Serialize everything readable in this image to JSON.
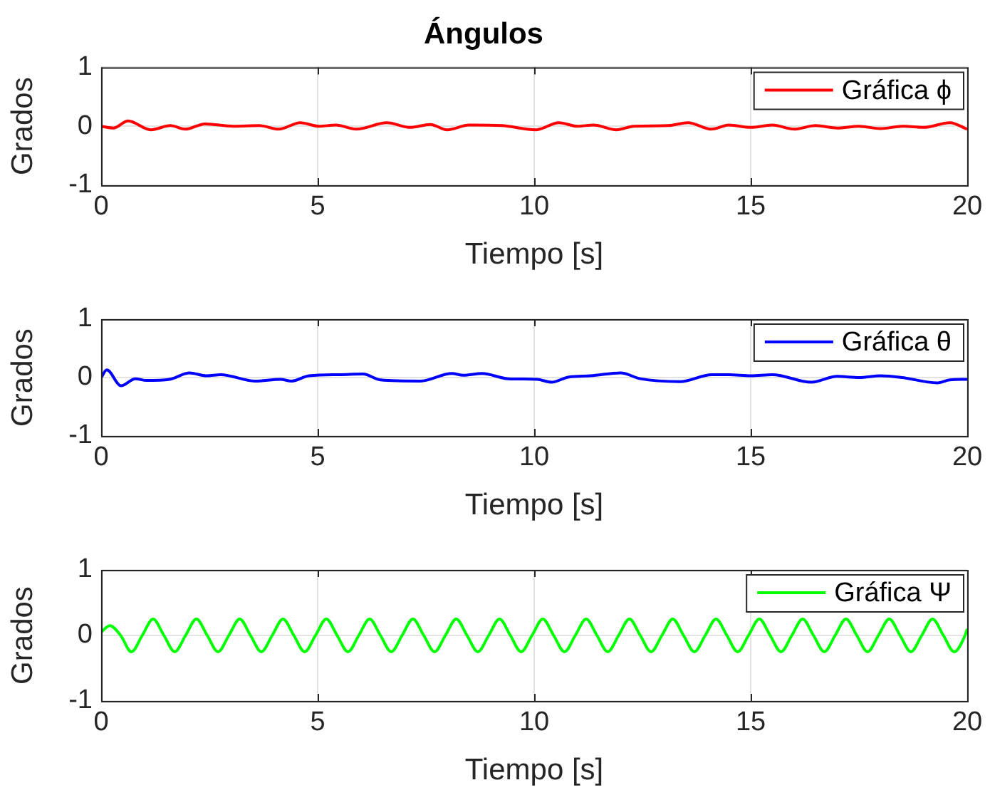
{
  "chart_data": [
    {
      "type": "line",
      "title": "Ángulos",
      "xlabel": "Tiempo [s]",
      "ylabel": "Grados",
      "xlim": [
        0,
        20
      ],
      "xticks": [
        0,
        5,
        10,
        15,
        20
      ],
      "ylim": [
        -1,
        1
      ],
      "yticks": [
        -1,
        0,
        1
      ],
      "grid": true,
      "legend": "top right",
      "marker": "none",
      "line_style": "solid",
      "series": [
        {
          "name": "Gráfica ϕ",
          "color": "#ff0000",
          "x": [
            0,
            0.29,
            0.62,
            1.15,
            1.6,
            1.94,
            2.4,
            3.06,
            3.65,
            4.1,
            4.6,
            5.03,
            5.42,
            5.89,
            6.6,
            7.14,
            7.6,
            7.99,
            8.5,
            9.25,
            10.04,
            10.57,
            11,
            11.37,
            11.9,
            12.3,
            13.1,
            13.55,
            14.1,
            14.5,
            15,
            15.5,
            16,
            16.5,
            17,
            17.5,
            18,
            18.5,
            19,
            19.6,
            20
          ],
          "values": [
            0,
            -0.03,
            0.09,
            -0.06,
            0.01,
            -0.05,
            0.04,
            0,
            0.01,
            -0.05,
            0.06,
            0,
            0.02,
            -0.05,
            0.06,
            -0.02,
            0.03,
            -0.06,
            0.02,
            0.01,
            -0.06,
            0.06,
            0,
            0.02,
            -0.06,
            0,
            0.01,
            0.06,
            -0.05,
            0.02,
            -0.02,
            0.02,
            -0.05,
            0.01,
            -0.03,
            0,
            -0.04,
            0,
            -0.02,
            0.06,
            -0.05
          ]
        }
      ]
    },
    {
      "type": "line",
      "xlabel": "Tiempo [s]",
      "ylabel": "Grados",
      "xlim": [
        0,
        20
      ],
      "xticks": [
        0,
        5,
        10,
        15,
        20
      ],
      "ylim": [
        -1,
        1
      ],
      "yticks": [
        -1,
        0,
        1
      ],
      "grid": true,
      "legend": "top right",
      "marker": "none",
      "line_style": "solid",
      "series": [
        {
          "name": "Gráfica θ",
          "color": "#0000ff",
          "x": [
            0,
            0.13,
            0.46,
            0.79,
            1.05,
            1.58,
            2.04,
            2.43,
            2.76,
            3.55,
            4.14,
            4.4,
            4.8,
            5.53,
            6.05,
            6.45,
            7.37,
            8.1,
            8.36,
            8.8,
            9.4,
            10.07,
            10.4,
            10.8,
            11.3,
            12,
            12.45,
            13.37,
            14.1,
            14.5,
            15,
            15.5,
            16.4,
            17,
            17.5,
            18,
            18.5,
            19.3,
            19.6,
            20
          ],
          "values": [
            0,
            0.13,
            -0.14,
            -0.02,
            -0.05,
            -0.03,
            0.08,
            0.03,
            0.05,
            -0.06,
            -0.03,
            -0.06,
            0.03,
            0.05,
            0.06,
            -0.04,
            -0.06,
            0.07,
            0.04,
            0.07,
            -0.02,
            -0.03,
            -0.08,
            0.01,
            0.03,
            0.08,
            -0.02,
            -0.07,
            0.05,
            0.05,
            0.03,
            0.05,
            -0.08,
            0.02,
            0,
            0.03,
            0,
            -0.09,
            -0.04,
            -0.03
          ]
        }
      ]
    },
    {
      "type": "line",
      "xlabel": "Tiempo [s]",
      "ylabel": "Grados",
      "xlim": [
        0,
        20
      ],
      "xticks": [
        0,
        5,
        10,
        15,
        20
      ],
      "ylim": [
        -1,
        1
      ],
      "yticks": [
        -1,
        0,
        1
      ],
      "grid": true,
      "legend": "top right",
      "marker": "none",
      "line_style": "solid",
      "series": [
        {
          "name": "Gráfica Ψ",
          "color": "#00ff00",
          "x": [
            0,
            0.2,
            0.45,
            0.7,
            0.95,
            1.2,
            1.45,
            1.7,
            1.95,
            2.2,
            2.45,
            2.7,
            2.95,
            3.2,
            3.45,
            3.7,
            3.95,
            4.2,
            4.45,
            4.7,
            4.95,
            5.2,
            5.45,
            5.7,
            5.95,
            6.2,
            6.45,
            6.7,
            6.95,
            7.2,
            7.45,
            7.7,
            7.95,
            8.2,
            8.45,
            8.7,
            8.95,
            9.2,
            9.45,
            9.7,
            9.95,
            10.2,
            10.45,
            10.7,
            10.95,
            11.2,
            11.45,
            11.7,
            11.95,
            12.2,
            12.45,
            12.7,
            12.95,
            13.2,
            13.45,
            13.7,
            13.95,
            14.2,
            14.45,
            14.7,
            14.95,
            15.2,
            15.45,
            15.7,
            15.95,
            16.2,
            16.45,
            16.7,
            16.95,
            17.2,
            17.45,
            17.7,
            17.95,
            18.2,
            18.45,
            18.7,
            18.95,
            19.2,
            19.45,
            19.7,
            19.95,
            20
          ],
          "values": [
            0.05,
            0.15,
            0,
            -0.25,
            0,
            0.25,
            0,
            -0.25,
            0,
            0.25,
            0,
            -0.25,
            0,
            0.25,
            0,
            -0.25,
            0,
            0.25,
            0,
            -0.25,
            0,
            0.25,
            0,
            -0.25,
            0,
            0.25,
            0,
            -0.25,
            0,
            0.25,
            0,
            -0.25,
            0,
            0.25,
            0,
            -0.25,
            0,
            0.25,
            0,
            -0.25,
            0,
            0.25,
            0,
            -0.25,
            0,
            0.25,
            0,
            -0.25,
            0,
            0.25,
            0,
            -0.25,
            0,
            0.25,
            0,
            -0.25,
            0,
            0.25,
            0,
            -0.25,
            0,
            0.25,
            0,
            -0.25,
            0,
            0.25,
            0,
            -0.25,
            0,
            0.25,
            0,
            -0.25,
            0,
            0.25,
            0,
            -0.25,
            0,
            0.25,
            0,
            -0.25,
            0,
            0.1
          ]
        }
      ]
    }
  ]
}
